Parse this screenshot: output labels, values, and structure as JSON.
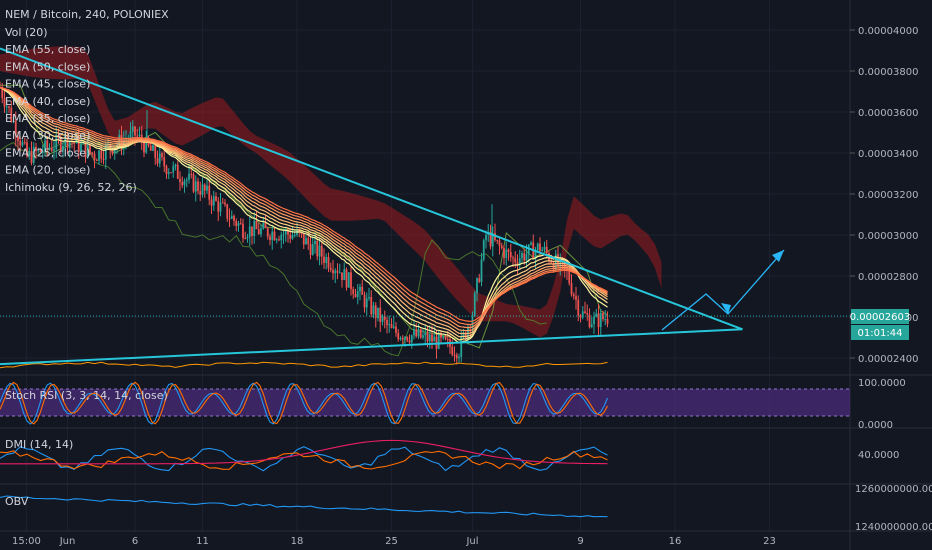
{
  "header": {
    "title": "NEM / Bitcoin, 240, POLONIEX",
    "studies": [
      "Vol (20)",
      "EMA (55, close)",
      "EMA (50, close)",
      "EMA (45, close)",
      "EMA (40, close)",
      "EMA (35, close)",
      "EMA (30, close)",
      "EMA (25, close)",
      "EMA (20, close)",
      "Ichimoku (9, 26, 52, 26)"
    ]
  },
  "panes": {
    "stoch_label": "Stoch RSI (3, 3, 14, 14, close)",
    "dmi_label": "DMI (14, 14)",
    "obv_label": "OBV"
  },
  "price_badge": {
    "price": "0.00002603",
    "countdown": "01:01:44"
  },
  "colors": {
    "background": "#131722",
    "up": "#26a69a",
    "down": "#ef5350",
    "trendline": "#26c6da",
    "ema_fast": "#fff59d",
    "ema_slow": "#ff7043",
    "cloud": "#b71c1c",
    "arrow": "#29b6f6"
  },
  "chart_data": {
    "type": "candlestick",
    "symbol": "NEM / Bitcoin",
    "interval": "240",
    "exchange": "POLONIEX",
    "y_ticks": [
      "0.00004000",
      "0.00003800",
      "0.00003600",
      "0.00003400",
      "0.00003200",
      "0.00003000",
      "0.00002800",
      "0.00002600",
      "0.00002400"
    ],
    "ylim": [
      2.36e-05,
      4.16e-05
    ],
    "x_ticks": [
      "15:00",
      "Jun",
      "6",
      "11",
      "18",
      "25",
      "Jul",
      "9",
      "16",
      "23"
    ],
    "x_range": [
      "2018-05-27",
      "2018-07-25"
    ],
    "close_path": [
      [
        "2018-05-27",
        3.72e-05
      ],
      [
        "2018-05-29",
        3.38e-05
      ],
      [
        "2018-06-01",
        3.47e-05
      ],
      [
        "2018-06-03",
        3.39e-05
      ],
      [
        "2018-06-06",
        3.49e-05
      ],
      [
        "2018-06-08",
        3.35e-05
      ],
      [
        "2018-06-11",
        3.22e-05
      ],
      [
        "2018-06-14",
        3.03e-05
      ],
      [
        "2018-06-18",
        3e-05
      ],
      [
        "2018-06-21",
        2.84e-05
      ],
      [
        "2018-06-23",
        2.68e-05
      ],
      [
        "2018-06-25",
        2.53e-05
      ],
      [
        "2018-06-28",
        2.49e-05
      ],
      [
        "2018-06-30",
        2.44e-05
      ],
      [
        "2018-07-01",
        2.62e-05
      ],
      [
        "2018-07-02",
        3e-05
      ],
      [
        "2018-07-04",
        2.88e-05
      ],
      [
        "2018-07-06",
        2.94e-05
      ],
      [
        "2018-07-08",
        2.81e-05
      ],
      [
        "2018-07-09",
        2.62e-05
      ],
      [
        "2018-07-10",
        2.58e-05
      ],
      [
        "2018-07-11",
        2.6e-05
      ]
    ],
    "trendlines": [
      {
        "name": "upper",
        "from": [
          "2018-05-27",
          3.91e-05
        ],
        "to": [
          "2018-07-21",
          2.54e-05
        ]
      },
      {
        "name": "lower",
        "from": [
          "2018-05-27",
          2.37e-05
        ],
        "to": [
          "2018-07-21",
          2.54e-05
        ]
      }
    ],
    "current_price": 2.603e-05,
    "stoch_rsi": {
      "ticks": [
        "100.0000",
        "0.0000"
      ],
      "band": [
        20,
        80
      ]
    },
    "dmi": {
      "ticks": [
        "40.0000"
      ]
    },
    "obv": {
      "ticks": [
        "1260000000.0000",
        "1240000000.0000"
      ]
    }
  }
}
